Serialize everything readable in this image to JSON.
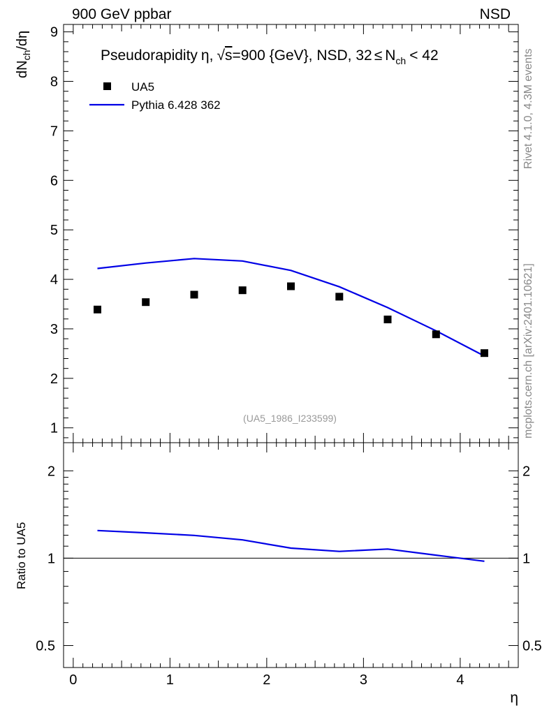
{
  "header": {
    "left": "900 GeV ppbar",
    "right": "NSD"
  },
  "sidebar": {
    "rivet": "Rivet 4.1.0,  4.3M events",
    "mcplots": "mcplots.cern.ch [arXiv:2401.10621]"
  },
  "chart_data": [
    {
      "type": "scatter",
      "panel": "main",
      "title": {
        "pre": "Pseudorapidity",
        "eta": "η,",
        "sqrt": "√",
        "s": "s",
        "energy": "=900 {GeV}, NSD, 32",
        "le": "≤",
        "n": "N",
        "ch": "ch",
        "tail": "< 42"
      },
      "ylabel": {
        "main": "dN",
        "sub": "ch",
        "tail": "/dη"
      },
      "ylim": [
        0.7,
        9.15
      ],
      "xlim": [
        -0.1,
        4.6
      ],
      "yticks": [
        "1",
        "2",
        "3",
        "4",
        "5",
        "6",
        "7",
        "8",
        "9"
      ],
      "watermark": "(UA5_1986_I233599)",
      "legend": {
        "position": "top-left",
        "data_label": "UA5",
        "mc_label": "Pythia 6.428 362"
      },
      "series": [
        {
          "name": "UA5",
          "style": "markers",
          "x": [
            0.25,
            0.75,
            1.25,
            1.75,
            2.25,
            2.75,
            3.25,
            3.75,
            4.25
          ],
          "values": [
            3.39,
            3.54,
            3.69,
            3.78,
            3.86,
            3.65,
            3.19,
            2.89,
            2.51
          ]
        },
        {
          "name": "Pythia 6.428 362",
          "style": "line",
          "x": [
            0.25,
            0.75,
            1.25,
            1.75,
            2.25,
            2.75,
            3.25,
            3.75,
            4.25
          ],
          "values": [
            4.22,
            4.33,
            4.42,
            4.37,
            4.18,
            3.85,
            3.43,
            2.96,
            2.45
          ]
        }
      ]
    },
    {
      "type": "line",
      "panel": "ratio",
      "ylabel": "Ratio to UA5",
      "xlabel": "η",
      "yscale": "log",
      "ylim": [
        0.42,
        2.5
      ],
      "xlim": [
        -0.1,
        4.6
      ],
      "yticks": [
        "0.5",
        "1",
        "2"
      ],
      "xticks": [
        "0",
        "1",
        "2",
        "3",
        "4"
      ],
      "reference": 1,
      "series": [
        {
          "name": "Pythia 6.428 362",
          "x": [
            0.25,
            0.75,
            1.25,
            1.75,
            2.25,
            2.75,
            3.25,
            3.75,
            4.25
          ],
          "values": [
            1.245,
            1.223,
            1.198,
            1.156,
            1.083,
            1.055,
            1.075,
            1.024,
            0.976
          ]
        }
      ]
    }
  ],
  "colors": {
    "data": "#000000",
    "mc": "#0000e6",
    "grey_text": "#888888"
  }
}
